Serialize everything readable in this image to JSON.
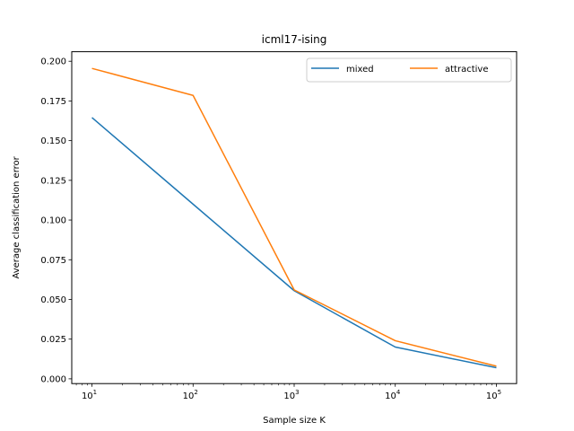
{
  "chart_data": {
    "type": "line",
    "title": "icml17-ising",
    "xlabel": "Sample size K",
    "ylabel": "Average classification error",
    "xscale": "log",
    "x": [
      10,
      100,
      1000,
      10000,
      100000
    ],
    "xticks": [
      {
        "base": "10",
        "exp": "1"
      },
      {
        "base": "10",
        "exp": "2"
      },
      {
        "base": "10",
        "exp": "3"
      },
      {
        "base": "10",
        "exp": "4"
      },
      {
        "base": "10",
        "exp": "5"
      }
    ],
    "ylim": [
      -0.003,
      0.206
    ],
    "yticks": [
      "0.000",
      "0.025",
      "0.050",
      "0.075",
      "0.100",
      "0.125",
      "0.150",
      "0.175",
      "0.200"
    ],
    "grid": false,
    "legend": {
      "location": "top-right",
      "columns": 2
    },
    "series": [
      {
        "name": "mixed",
        "color": "#1f77b4",
        "values": [
          0.1645,
          0.11,
          0.0555,
          0.02,
          0.007
        ]
      },
      {
        "name": "attractive",
        "color": "#ff7f0e",
        "values": [
          0.1955,
          0.1785,
          0.056,
          0.024,
          0.008
        ]
      }
    ]
  }
}
